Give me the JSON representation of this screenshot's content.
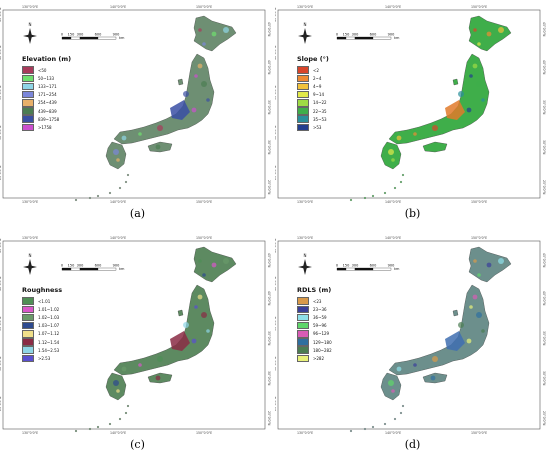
{
  "compass_label": "N",
  "scale_bar": {
    "labels": [
      "0",
      "150",
      "300",
      "600",
      "900"
    ],
    "unit": "km"
  },
  "lat_ticks": [
    "45°0'0\"N",
    "40°0'0\"N",
    "35°0'0\"N",
    "30°0'0\"N",
    "25°0'0\"N"
  ],
  "lon_ticks": [
    "130°0'0\"E",
    "140°0'0\"E",
    "150°0'0\"E"
  ],
  "panels": [
    {
      "caption": "(a)",
      "legend_title": "Elevation (m)",
      "land_color": "#6e8f73",
      "accent_color": "#3a4fa5",
      "items": [
        {
          "label": "<50",
          "color": "#a83a5b"
        },
        {
          "label": "50~133",
          "color": "#6fdf6f"
        },
        {
          "label": "133~171",
          "color": "#8fd5e6"
        },
        {
          "label": "171~254",
          "color": "#7b86d9"
        },
        {
          "label": "254~439",
          "color": "#e8b06a"
        },
        {
          "label": "439~839",
          "color": "#4c7d52"
        },
        {
          "label": "839~1758",
          "color": "#3b4fa2"
        },
        {
          "label": ">1758",
          "color": "#cc4fcf"
        }
      ]
    },
    {
      "caption": "(b)",
      "legend_title": "Slope (°)",
      "land_color": "#3fae4a",
      "accent_color": "#e07a2a",
      "items": [
        {
          "label": "<2",
          "color": "#d9452b"
        },
        {
          "label": "2~4",
          "color": "#ef8a33"
        },
        {
          "label": "4~9",
          "color": "#f2c23b"
        },
        {
          "label": "9~14",
          "color": "#e3ea4a"
        },
        {
          "label": "14~22",
          "color": "#9edb45"
        },
        {
          "label": "22~35",
          "color": "#3fae4a"
        },
        {
          "label": "35~53",
          "color": "#2a8f9a"
        },
        {
          "label": ">53",
          "color": "#233e8f"
        }
      ]
    },
    {
      "caption": "(c)",
      "legend_title": "Roughness",
      "land_color": "#5d8a61",
      "accent_color": "#8a2b45",
      "items": [
        {
          "label": "<1.01",
          "color": "#4f8f55"
        },
        {
          "label": "1.01~1.02",
          "color": "#d957c9"
        },
        {
          "label": "1.02~1.03",
          "color": "#6a9a6a"
        },
        {
          "label": "1.03~1.07",
          "color": "#2e4a8f"
        },
        {
          "label": "1.07~1.12",
          "color": "#f0e08a"
        },
        {
          "label": "1.12~1.54",
          "color": "#8a2b45"
        },
        {
          "label": "1.54~2.53",
          "color": "#8fd5e6"
        },
        {
          "label": ">2.53",
          "color": "#5a4fd0"
        }
      ]
    },
    {
      "caption": "(d)",
      "legend_title": "RDLS (m)",
      "land_color": "#6c8f8c",
      "accent_color": "#3f6fb0",
      "items": [
        {
          "label": "<23",
          "color": "#d99a4a"
        },
        {
          "label": "23~36",
          "color": "#3a3f9a"
        },
        {
          "label": "36~59",
          "color": "#8fe0ea"
        },
        {
          "label": "59~96",
          "color": "#5fd66a"
        },
        {
          "label": "96~129",
          "color": "#d85bb5"
        },
        {
          "label": "129~180",
          "color": "#2f6f9f"
        },
        {
          "label": "180~282",
          "color": "#4c7d52"
        },
        {
          "label": ">282",
          "color": "#e9f27a"
        }
      ]
    }
  ]
}
